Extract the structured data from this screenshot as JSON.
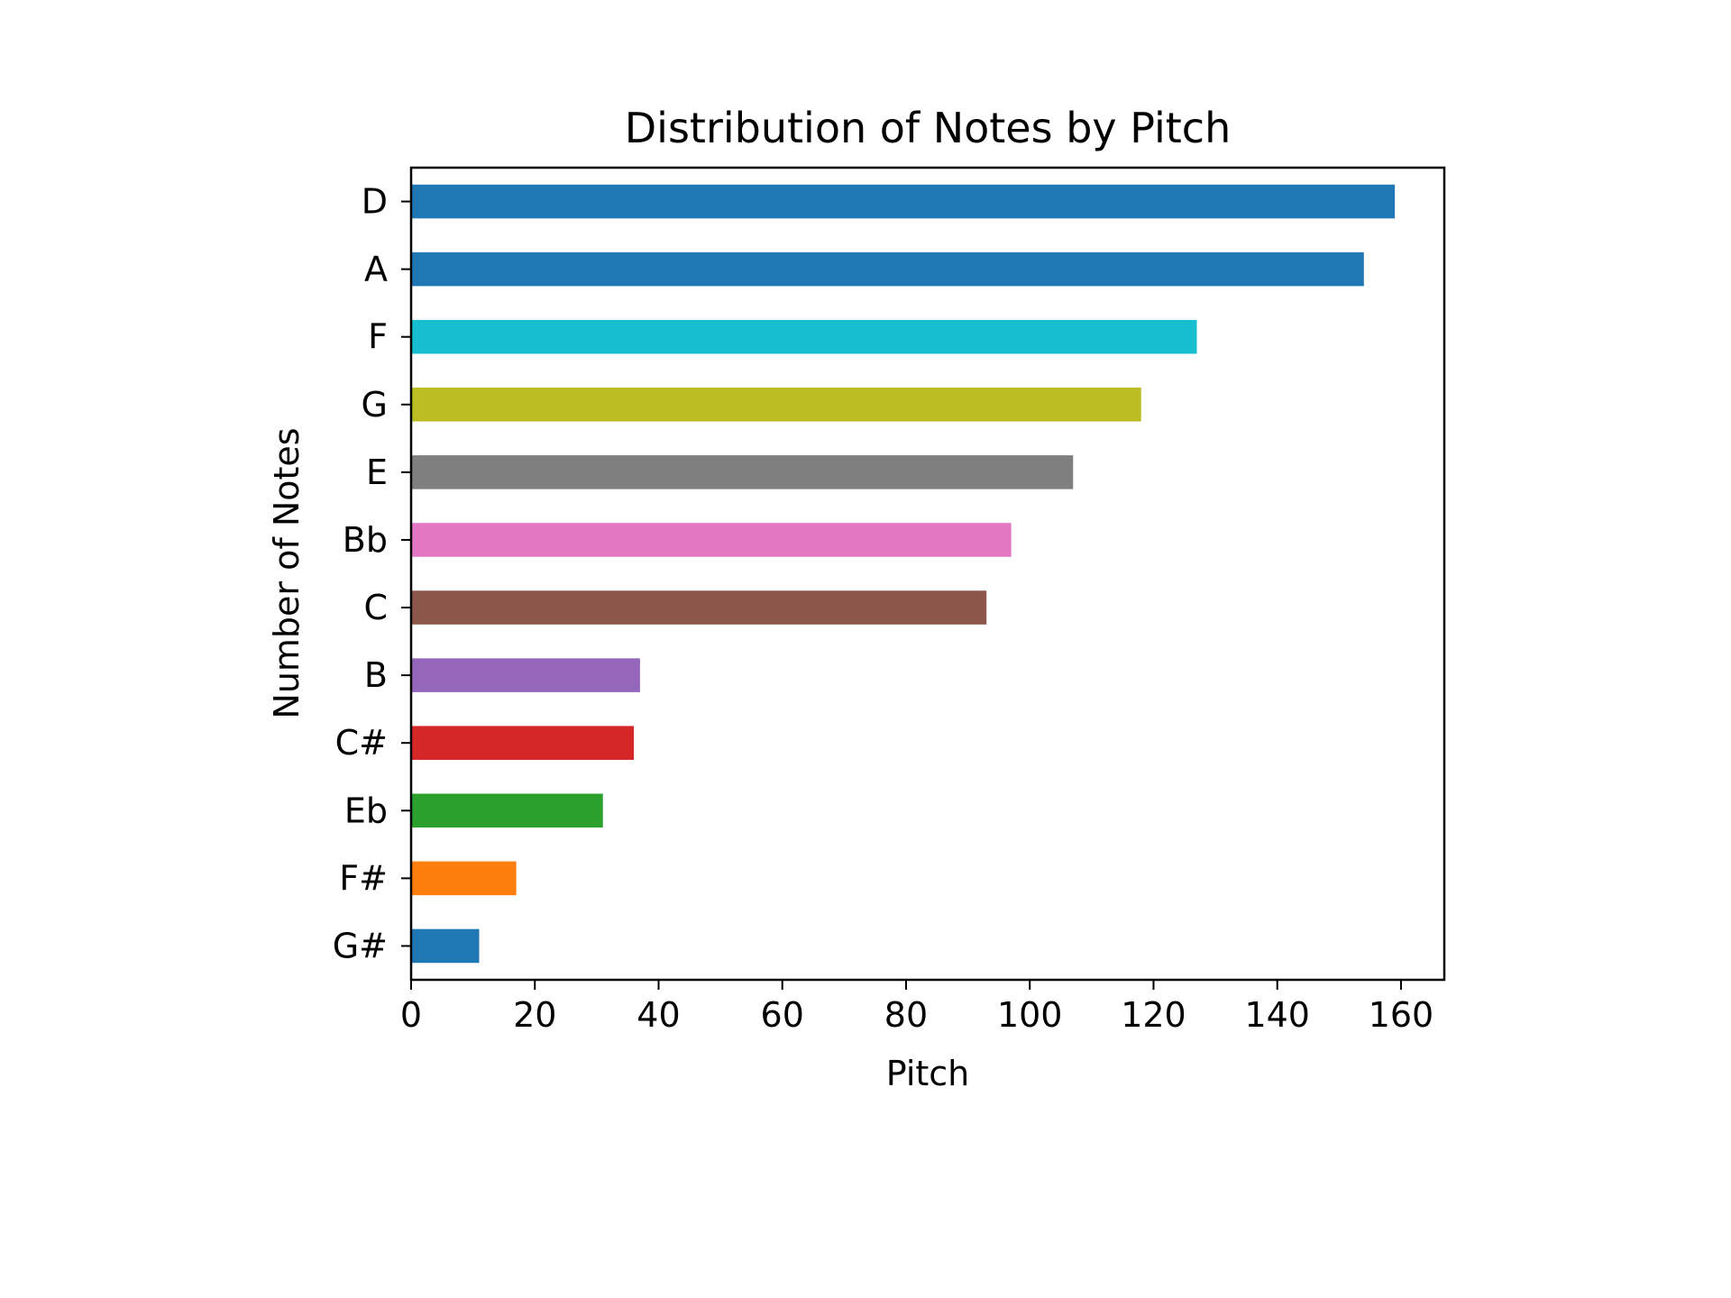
{
  "chart_data": {
    "type": "bar",
    "orientation": "horizontal",
    "title": "Distribution of Notes by Pitch",
    "xlabel": "Pitch",
    "ylabel": "Number of Notes",
    "categories": [
      "D",
      "A",
      "F",
      "G",
      "E",
      "Bb",
      "C",
      "B",
      "C#",
      "Eb",
      "F#",
      "G#"
    ],
    "values": [
      159,
      154,
      127,
      118,
      107,
      97,
      93,
      37,
      36,
      31,
      17,
      11
    ],
    "colors": [
      "#1f77b4",
      "#1f77b4",
      "#17becf",
      "#bcbd22",
      "#7f7f7f",
      "#e377c2",
      "#8c564b",
      "#9467bd",
      "#d62728",
      "#2ca02c",
      "#ff7f0e",
      "#1f77b4"
    ],
    "xlim": [
      0,
      167
    ],
    "xticks": [
      0,
      20,
      40,
      60,
      80,
      100,
      120,
      140,
      160
    ],
    "xtick_labels": [
      "0",
      "20",
      "40",
      "60",
      "80",
      "100",
      "120",
      "140",
      "160"
    ],
    "grid": false,
    "legend": false
  }
}
